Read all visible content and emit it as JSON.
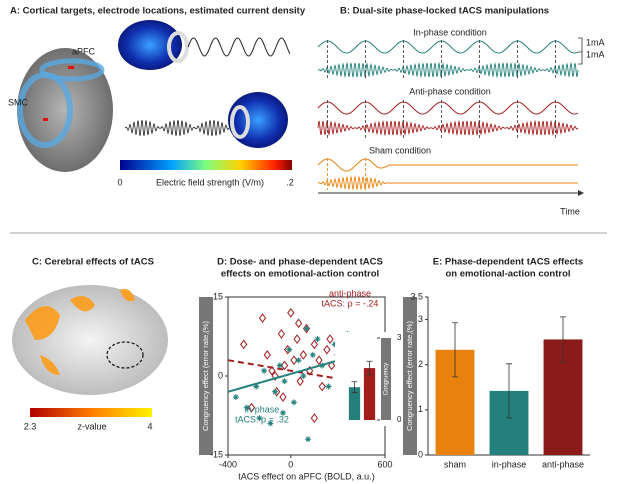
{
  "panel_a": {
    "title": "A: Cortical targets, electrode locations, estimated current density",
    "labels": [
      "aPFC",
      "SMC"
    ],
    "colorbar": {
      "min_label": "0",
      "title": "Electric field strength (V/m)",
      "max_label": ".2"
    }
  },
  "panel_b": {
    "title": "B: Dual-site phase-locked tACS manipulations",
    "conditions": [
      "In-phase condition",
      "Anti-phase condition",
      "Sham condition"
    ],
    "scale_labels": [
      "1mA",
      "1mA"
    ],
    "x_label": "Time"
  },
  "panel_c": {
    "title": "C: Cerebral effects of tACS",
    "colorbar": {
      "min_label": "2.3",
      "title": "z-value",
      "max_label": "4"
    }
  },
  "chart_data": [
    {
      "type": "scatter",
      "title": [
        "D: Dose- and phase-dependent tACS",
        "effects on emotional-action control"
      ],
      "x_label": "tACS effect on aPFC (BOLD, a.u.)",
      "y_label": "Congruency effect (error rate,(%)",
      "xlim": [
        -400,
        600
      ],
      "xticks": [
        -400,
        0,
        600
      ],
      "ylim": [
        -15,
        15
      ],
      "yticks": [
        15,
        0,
        -15
      ],
      "series": [
        {
          "name": "anti-phase",
          "annotation": "tACS: ρ = -.24",
          "color": "#a31d1d",
          "marker": "diamond",
          "fit_x": [
            -400,
            600
          ],
          "fit_values": [
            3,
            -2
          ],
          "x": [
            -300,
            -180,
            -150,
            -120,
            -90,
            -60,
            -40,
            -20,
            0,
            20,
            40,
            60,
            80,
            100,
            120,
            150,
            180,
            200,
            230,
            260,
            300,
            340,
            380,
            420,
            -250,
            -100,
            50,
            250,
            -50,
            150
          ],
          "values": [
            6,
            11,
            4,
            1,
            -3,
            8,
            2,
            5,
            12,
            3,
            7,
            -1,
            4,
            9,
            1,
            6,
            3,
            -2,
            5,
            2,
            4,
            1,
            -3,
            2,
            -6,
            0,
            10,
            7,
            -4,
            -8
          ]
        },
        {
          "name": "in-phase",
          "annotation": "tACS: ρ = .32",
          "color": "#23807c",
          "marker": "star",
          "fit_x": [
            -400,
            600
          ],
          "fit_values": [
            -3,
            5.5
          ],
          "x": [
            -350,
            -280,
            -220,
            -170,
            -130,
            -100,
            -70,
            -40,
            -10,
            20,
            50,
            80,
            110,
            140,
            170,
            200,
            240,
            280,
            320,
            360,
            400,
            450,
            -200,
            -50,
            100,
            300
          ],
          "values": [
            -4,
            -6,
            -2,
            1,
            -9,
            -3,
            2,
            -1,
            5,
            -5,
            3,
            0,
            -12,
            4,
            7,
            2,
            -2,
            6,
            1,
            8,
            3,
            5,
            -8,
            -7,
            9,
            -3
          ]
        }
      ]
    },
    {
      "type": "bar",
      "y_label": "Congruency",
      "ylim": [
        0,
        3
      ],
      "yticks": [
        3,
        0
      ],
      "values": [
        1.2,
        1.9
      ],
      "colors": [
        "#23807c",
        "#a31d1d"
      ],
      "errors": [
        0.2,
        0.25
      ]
    },
    {
      "type": "bar",
      "title": [
        "E: Phase-dependent tACS effects",
        "on emotional-action control"
      ],
      "y_label": "Congruency effect (error rate,(%)",
      "categories": [
        "sham",
        "in-phase",
        "anti-phase"
      ],
      "values": [
        2.33,
        1.42,
        2.56
      ],
      "errors": [
        0.6,
        0.6,
        0.5
      ],
      "colors": [
        "#e8820c",
        "#23807c",
        "#8b1a1a"
      ],
      "ylim": [
        0,
        3.5
      ],
      "yticks": [
        0,
        1,
        2,
        3,
        3.5
      ]
    }
  ]
}
